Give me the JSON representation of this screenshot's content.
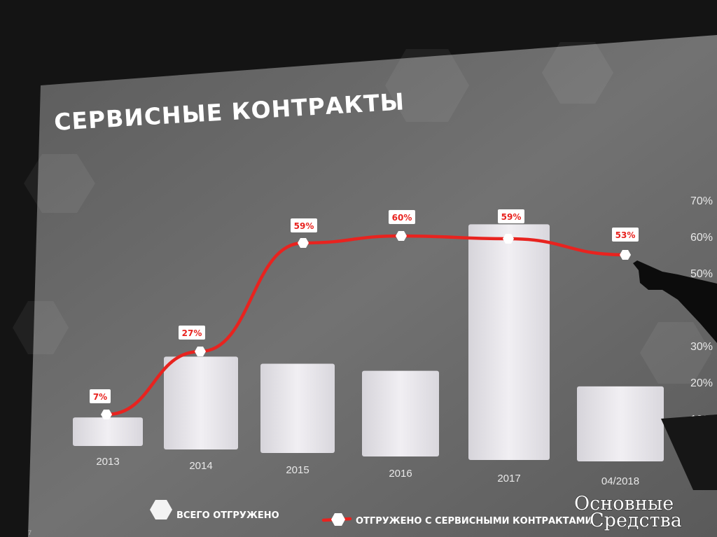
{
  "slide": {
    "title": "СЕРВИСНЫЕ КОНТРАКТЫ",
    "slide_number": "7"
  },
  "watermark": {
    "line1": "Основные",
    "line2": "Средства"
  },
  "colors": {
    "slide_bg": "#6a6a6a",
    "bar": "#e4e2e7",
    "line": "#e8231f",
    "label_text": "#e8231f",
    "label_bg": "#ffffff",
    "text": "#ffffff"
  },
  "chart_data": {
    "type": "bar",
    "categories": [
      "2013",
      "2014",
      "2015",
      "2016",
      "2017",
      "04/2018"
    ],
    "series": [
      {
        "name": "ВСЕГО ОТГРУЖЕНО",
        "type": "bar",
        "values": [
          4,
          13,
          12.5,
          12,
          33,
          10.5
        ]
      },
      {
        "name": "ОТГРУЖЕНО С СЕРВИСНЫМИ КОНТРАКТАМИ",
        "type": "line",
        "axis": "right",
        "values": [
          7,
          27,
          59,
          60,
          59,
          53
        ],
        "labels": [
          "7%",
          "27%",
          "59%",
          "60%",
          "59%",
          "53%"
        ]
      }
    ],
    "y_right": {
      "ticks": [
        "10%",
        "20%",
        "30%",
        "40%",
        "50%",
        "60%",
        "70%"
      ],
      "range": [
        0,
        70
      ]
    },
    "legend": {
      "placement": "bottom",
      "items": [
        "ВСЕГО ОТГРУЖЕНО",
        "ОТГРУЖЕНО С СЕРВИСНЫМИ КОНТРАКТАМИ"
      ]
    },
    "grid": false
  }
}
